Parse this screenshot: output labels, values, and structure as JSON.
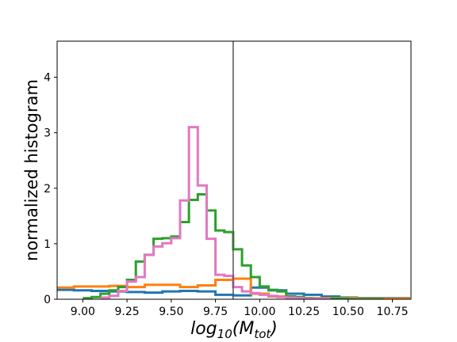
{
  "chart_data": {
    "type": "histogram",
    "title": "",
    "xlabel": "log",
    "xlabel_sub": "10",
    "xlabel_arg": "(M",
    "xlabel_arg_sub": "tot",
    "xlabel_close": ")",
    "ylabel": "normalized histogram",
    "xlim": [
      8.855,
      10.855
    ],
    "ylim": [
      0,
      4.65
    ],
    "xticks": [
      9.0,
      9.25,
      9.5,
      9.75,
      10.0,
      10.25,
      10.5,
      10.75
    ],
    "xtick_labels": [
      "9.00",
      "9.25",
      "9.50",
      "9.75",
      "10.00",
      "10.25",
      "10.50",
      "10.75"
    ],
    "yticks": [
      0,
      1,
      2,
      3,
      4
    ],
    "ytick_labels": [
      "0",
      "1",
      "2",
      "3",
      "4"
    ],
    "vline_x": 9.85,
    "grid": false,
    "legend": false,
    "series": [
      {
        "color": "#1f77b4",
        "edges": [
          8.85,
          8.95,
          9.05,
          9.15,
          9.25,
          9.35,
          9.45,
          9.55,
          9.65,
          9.75,
          9.85,
          9.95,
          10.05,
          10.15,
          10.25,
          10.35,
          10.45,
          10.55,
          10.65,
          10.75,
          10.85
        ],
        "values": [
          0.17,
          0.16,
          0.15,
          0.14,
          0.13,
          0.12,
          0.14,
          0.15,
          0.14,
          0.08,
          0.07,
          0.21,
          0.16,
          0.1,
          0.08,
          0.05,
          0.03,
          0.02,
          0.02,
          0.02
        ]
      },
      {
        "color": "#ff7f0e",
        "edges": [
          8.85,
          8.95,
          9.05,
          9.15,
          9.25,
          9.35,
          9.45,
          9.55,
          9.65,
          9.75,
          9.85,
          9.95,
          10.05,
          10.15,
          10.25,
          10.35,
          10.45,
          10.55,
          10.65,
          10.75,
          10.85
        ],
        "values": [
          0.21,
          0.23,
          0.23,
          0.24,
          0.22,
          0.26,
          0.26,
          0.22,
          0.25,
          0.35,
          0.37,
          0.1,
          0.05,
          0.03,
          0.02,
          0.02,
          0.02,
          0.01,
          0.01,
          0.01
        ]
      },
      {
        "color": "#2ca02c",
        "edges": [
          9.0,
          9.05,
          9.1,
          9.15,
          9.2,
          9.25,
          9.3,
          9.35,
          9.4,
          9.45,
          9.5,
          9.55,
          9.6,
          9.65,
          9.7,
          9.75,
          9.8,
          9.85,
          9.9,
          9.95,
          10.0,
          10.05,
          10.1,
          10.15,
          10.2,
          10.25,
          10.3,
          10.35,
          10.4,
          10.45,
          10.5,
          10.55,
          10.6,
          10.65,
          10.7
        ],
        "values": [
          0.02,
          0.04,
          0.1,
          0.16,
          0.22,
          0.35,
          0.68,
          0.8,
          1.09,
          1.1,
          1.13,
          1.39,
          1.79,
          1.89,
          1.6,
          1.24,
          1.21,
          0.9,
          0.61,
          0.4,
          0.23,
          0.17,
          0.14,
          0.05,
          0.04,
          0.02,
          0.01,
          0.01,
          0.01,
          0.01,
          0.0,
          0.0,
          0.0,
          0.0
        ]
      },
      {
        "color": "#e377c2",
        "edges": [
          9.1,
          9.15,
          9.2,
          9.25,
          9.3,
          9.35,
          9.4,
          9.45,
          9.5,
          9.55,
          9.6,
          9.65,
          9.7,
          9.75,
          9.8,
          9.85,
          9.9,
          9.95,
          10.0,
          10.05,
          10.1,
          10.15,
          10.2,
          10.25,
          10.3,
          10.35,
          10.4
        ],
        "values": [
          0.03,
          0.06,
          0.15,
          0.32,
          0.4,
          0.8,
          0.95,
          1.01,
          1.1,
          1.78,
          3.1,
          2.05,
          1.09,
          0.44,
          0.42,
          0.22,
          0.14,
          0.11,
          0.08,
          0.06,
          0.04,
          0.03,
          0.02,
          0.01,
          0.01,
          0.01
        ]
      }
    ]
  }
}
